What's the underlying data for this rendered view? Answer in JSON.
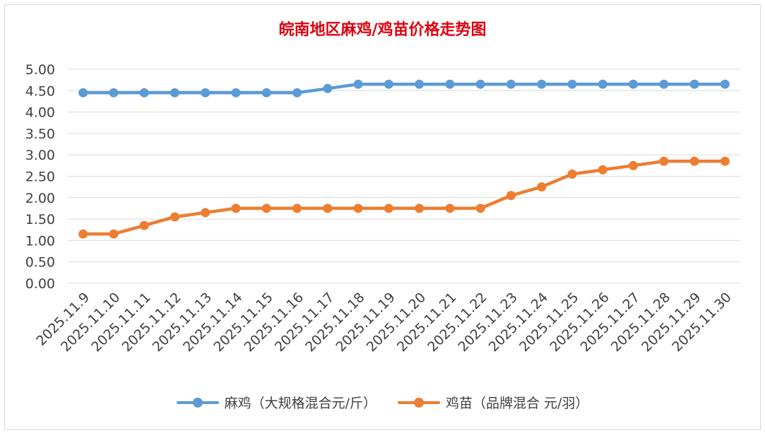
{
  "chart_data": {
    "type": "line",
    "title": "皖南地区麻鸡/鸡苗价格走势图",
    "xlabel": "",
    "ylabel": "",
    "ylim": [
      0,
      5
    ],
    "ytick_labels": [
      "0.00",
      "0.50",
      "1.00",
      "1.50",
      "2.00",
      "2.50",
      "3.00",
      "3.50",
      "4.00",
      "4.50",
      "5.00"
    ],
    "grid": true,
    "legend_position": "bottom",
    "categories": [
      "2025.11.9",
      "2025.11.10",
      "2025.11.11",
      "2025.11.12",
      "2025.11.13",
      "2025.11.14",
      "2025.11.15",
      "2025.11.16",
      "2025.11.17",
      "2025.11.18",
      "2025.11.19",
      "2025.11.20",
      "2025.11.21",
      "2025.11.22",
      "2025.11.23",
      "2025.11.24",
      "2025.11.25",
      "2025.11.26",
      "2025.11.27",
      "2025.11.28",
      "2025.11.29",
      "2025.11.30"
    ],
    "series": [
      {
        "name": "麻鸡（大规格混合元/斤）",
        "color": "#5b9bd5",
        "values": [
          4.45,
          4.45,
          4.45,
          4.45,
          4.45,
          4.45,
          4.45,
          4.45,
          4.55,
          4.65,
          4.65,
          4.65,
          4.65,
          4.65,
          4.65,
          4.65,
          4.65,
          4.65,
          4.65,
          4.65,
          4.65,
          4.65
        ]
      },
      {
        "name": "鸡苗（品牌混合 元/羽）",
        "color": "#ed7d31",
        "values": [
          1.15,
          1.15,
          1.35,
          1.55,
          1.65,
          1.75,
          1.75,
          1.75,
          1.75,
          1.75,
          1.75,
          1.75,
          1.75,
          1.75,
          2.05,
          2.25,
          2.55,
          2.65,
          2.75,
          2.85,
          2.85,
          2.85
        ]
      }
    ]
  }
}
